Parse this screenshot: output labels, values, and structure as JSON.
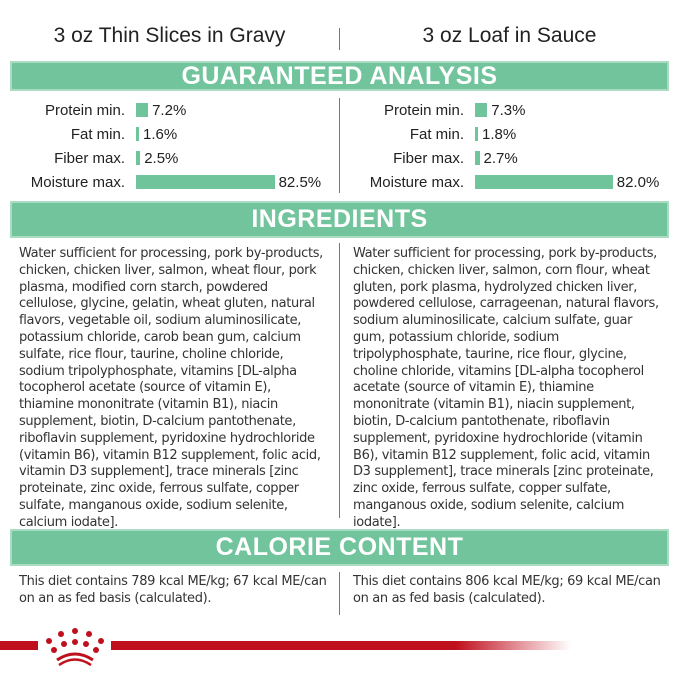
{
  "products": [
    {
      "title": "3 oz Thin Slices in Gravy",
      "analysis": [
        {
          "label": "Protein min.",
          "value": "7.2%",
          "pct": 7.2
        },
        {
          "label": "Fat min.",
          "value": "1.6%",
          "pct": 1.6
        },
        {
          "label": "Fiber max.",
          "value": "2.5%",
          "pct": 2.5
        },
        {
          "label": "Moisture max.",
          "value": "82.5%",
          "pct": 82.5
        }
      ],
      "ingredients": "Water sufficient for processing, pork by-products, chicken, chicken liver, salmon, wheat flour, pork plasma, modified corn starch, powdered cellulose, glycine, gelatin, wheat gluten, natural flavors, vegetable oil, sodium aluminosilicate, potassium chloride, carob bean gum, calcium sulfate, rice flour, taurine, choline chloride, sodium tripolyphosphate, vitamins [DL-alpha tocopherol acetate (source of vitamin E), thiamine mononitrate (vitamin B1), niacin supplement, biotin, D-calcium pantothenate, riboflavin supplement, pyridoxine hydrochloride (vitamin B6), vitamin B12 supplement, folic acid, vitamin D3 supplement], trace minerals [zinc proteinate, zinc oxide, ferrous sulfate, copper sulfate, manganous oxide, sodium selenite, calcium iodate].",
      "calorie": "This diet contains 789 kcal ME/kg; 67 kcal ME/can on an as fed basis (calculated)."
    },
    {
      "title": "3 oz Loaf in Sauce",
      "analysis": [
        {
          "label": "Protein min.",
          "value": "7.3%",
          "pct": 7.3
        },
        {
          "label": "Fat min.",
          "value": "1.8%",
          "pct": 1.8
        },
        {
          "label": "Fiber max.",
          "value": "2.7%",
          "pct": 2.7
        },
        {
          "label": "Moisture max.",
          "value": "82.0%",
          "pct": 82.0
        }
      ],
      "ingredients": "Water sufficient for processing, pork by-products, chicken, chicken liver, salmon, corn flour, wheat gluten, pork plasma, hydrolyzed chicken liver, powdered cellulose, carrageenan, natural flavors, sodium aluminosilicate, calcium sulfate, guar gum, potassium chloride, sodium tripolyphosphate, taurine, rice flour, glycine, choline chloride, vitamins [DL-alpha tocopherol acetate (source of vitamin E), thiamine mononitrate (vitamin B1), niacin supplement, biotin, D-calcium pantothenate, riboflavin supplement, pyridoxine hydrochloride (vitamin B6), vitamin B12 supplement, folic acid, vitamin D3 supplement], trace minerals [zinc proteinate, zinc oxide, ferrous sulfate, copper sulfate, manganous oxide, sodium selenite, calcium iodate].",
      "calorie": "This diet contains 806 kcal ME/kg; 69 kcal ME/can on an as fed basis (calculated)."
    }
  ],
  "sections": {
    "analysis": "GUARANTEED ANALYSIS",
    "ingredients": "INGREDIENTS",
    "calorie": "CALORIE CONTENT"
  },
  "brand": {
    "name": "Royal Canin",
    "color": "#c0101e"
  },
  "accent": "#72c49d"
}
